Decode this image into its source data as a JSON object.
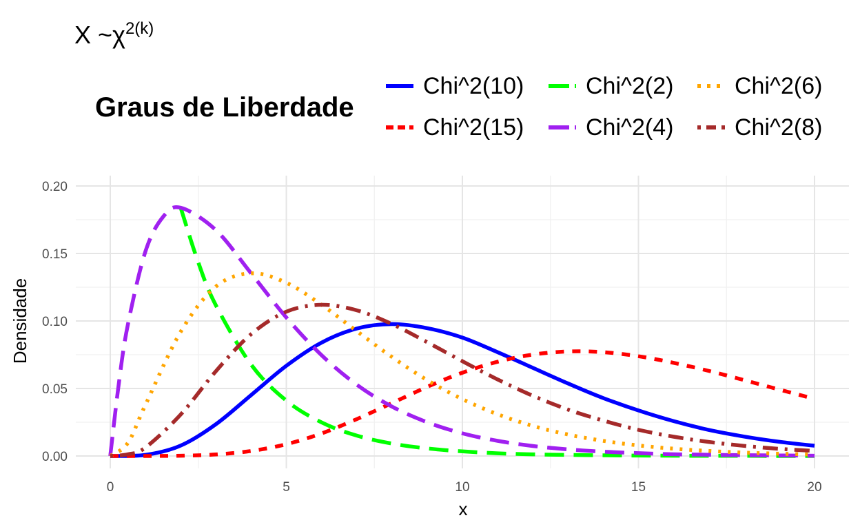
{
  "title": {
    "base": "X ~χ",
    "sup": "2(k)"
  },
  "legend": {
    "title": "Graus de Liberdade"
  },
  "chart_data": {
    "type": "line",
    "xlabel": "x",
    "ylabel": "Densidade",
    "xlim": [
      0,
      20
    ],
    "ylim": [
      0,
      0.2
    ],
    "x_ticks": [
      0,
      5,
      10,
      15,
      20
    ],
    "x_tick_labels": [
      "0",
      "5",
      "10",
      "15",
      "20"
    ],
    "y_ticks": [
      0,
      0.05,
      0.1,
      0.15,
      0.2
    ],
    "y_tick_labels": [
      "0.00",
      "0.05",
      "0.10",
      "0.15",
      "0.20"
    ],
    "grid": true,
    "legend_position": "top",
    "x_range_note": "curves drawn on x from 0 to 20",
    "series": [
      {
        "name": "Chi^2(10)",
        "df": 10,
        "color": "#0000ff",
        "dash": "solid",
        "x": [
          0,
          1,
          2,
          3,
          4,
          5,
          6,
          7,
          8,
          9,
          10,
          11,
          12,
          13,
          14,
          15,
          16,
          17,
          18,
          19,
          20
        ],
        "values": [
          0,
          0.0008,
          0.0077,
          0.0235,
          0.0451,
          0.0668,
          0.084,
          0.0944,
          0.0977,
          0.0947,
          0.0877,
          0.0769,
          0.0653,
          0.0537,
          0.0429,
          0.0337,
          0.0258,
          0.0193,
          0.0144,
          0.0105,
          0.0076
        ]
      },
      {
        "name": "Chi^2(15)",
        "df": 15,
        "color": "#ff0000",
        "dash": "dashed",
        "x": [
          0,
          1,
          2,
          3,
          4,
          5,
          6,
          7,
          8,
          9,
          10,
          11,
          12,
          13,
          14,
          15,
          16,
          17,
          18,
          19,
          20
        ],
        "values": [
          0,
          0.0,
          0.0002,
          0.0011,
          0.0037,
          0.0087,
          0.0167,
          0.0273,
          0.0392,
          0.0512,
          0.0617,
          0.0698,
          0.0751,
          0.0774,
          0.0769,
          0.0739,
          0.069,
          0.063,
          0.0562,
          0.0492,
          0.0423
        ]
      },
      {
        "name": "Chi^2(2)",
        "df": 2,
        "color": "#00ff00",
        "dash": "longdash",
        "x": [
          2,
          2.5,
          3,
          4,
          5,
          6,
          7,
          8,
          9,
          10,
          11,
          12,
          13,
          14,
          15,
          16,
          17,
          18,
          19,
          20
        ],
        "values": [
          0.1839,
          0.1433,
          0.1116,
          0.0677,
          0.041,
          0.0249,
          0.0151,
          0.0092,
          0.0056,
          0.0034,
          0.002,
          0.0012,
          0.0008,
          0.0005,
          0.0003,
          0.0002,
          0.0001,
          0.0001,
          0.0,
          0.0
        ]
      },
      {
        "name": "Chi^2(4)",
        "df": 4,
        "color": "#a020f0",
        "dash": "longdash",
        "x": [
          0,
          0.25,
          0.5,
          1,
          1.5,
          2,
          3,
          4,
          5,
          6,
          7,
          8,
          9,
          10,
          11,
          12,
          13,
          14,
          15,
          16,
          17,
          18,
          19,
          20
        ],
        "values": [
          0,
          0.0551,
          0.0974,
          0.1516,
          0.1771,
          0.1839,
          0.1673,
          0.1353,
          0.1026,
          0.0747,
          0.0528,
          0.0366,
          0.025,
          0.0168,
          0.0112,
          0.0074,
          0.0049,
          0.0032,
          0.0021,
          0.0013,
          0.0009,
          0.0006,
          0.0004,
          0.0002
        ]
      },
      {
        "name": "Chi^2(6)",
        "df": 6,
        "color": "#ffa500",
        "dash": "dotted",
        "x": [
          0,
          0.5,
          1,
          2,
          3,
          4,
          5,
          6,
          7,
          8,
          9,
          10,
          11,
          12,
          13,
          14,
          15,
          16,
          17,
          18,
          19,
          20
        ],
        "values": [
          0,
          0.0097,
          0.0379,
          0.092,
          0.1255,
          0.1353,
          0.1283,
          0.112,
          0.0925,
          0.0733,
          0.0562,
          0.0421,
          0.0309,
          0.0223,
          0.0159,
          0.0112,
          0.0078,
          0.0054,
          0.0037,
          0.0025,
          0.0017,
          0.0011
        ]
      },
      {
        "name": "Chi^2(8)",
        "df": 8,
        "color": "#a52a2a",
        "dash": "dotdash",
        "x": [
          0,
          0.5,
          1,
          2,
          3,
          4,
          5,
          6,
          7,
          8,
          9,
          10,
          11,
          12,
          13,
          14,
          15,
          16,
          17,
          18,
          19,
          20
        ],
        "values": [
          0,
          0.0012,
          0.0063,
          0.0307,
          0.0628,
          0.0902,
          0.1069,
          0.112,
          0.1079,
          0.0977,
          0.0843,
          0.0702,
          0.0567,
          0.0446,
          0.0344,
          0.0262,
          0.0194,
          0.0143,
          0.0104,
          0.0075,
          0.0053,
          0.0037
        ]
      }
    ]
  }
}
